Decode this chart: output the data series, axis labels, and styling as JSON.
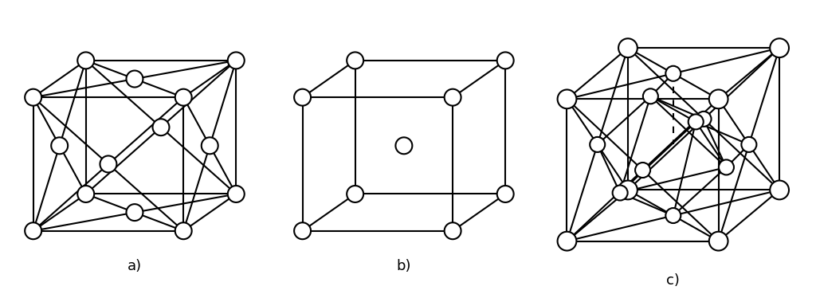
{
  "fig_width": 10.24,
  "fig_height": 3.79,
  "background": "#ffffff",
  "line_color": "#000000",
  "node_color": "#ffffff",
  "node_edge_color": "#000000",
  "linewidth": 1.5,
  "node_r": 5,
  "label_fontsize": 13,
  "label_a": "a)",
  "label_b": "b)",
  "label_c": "c)"
}
